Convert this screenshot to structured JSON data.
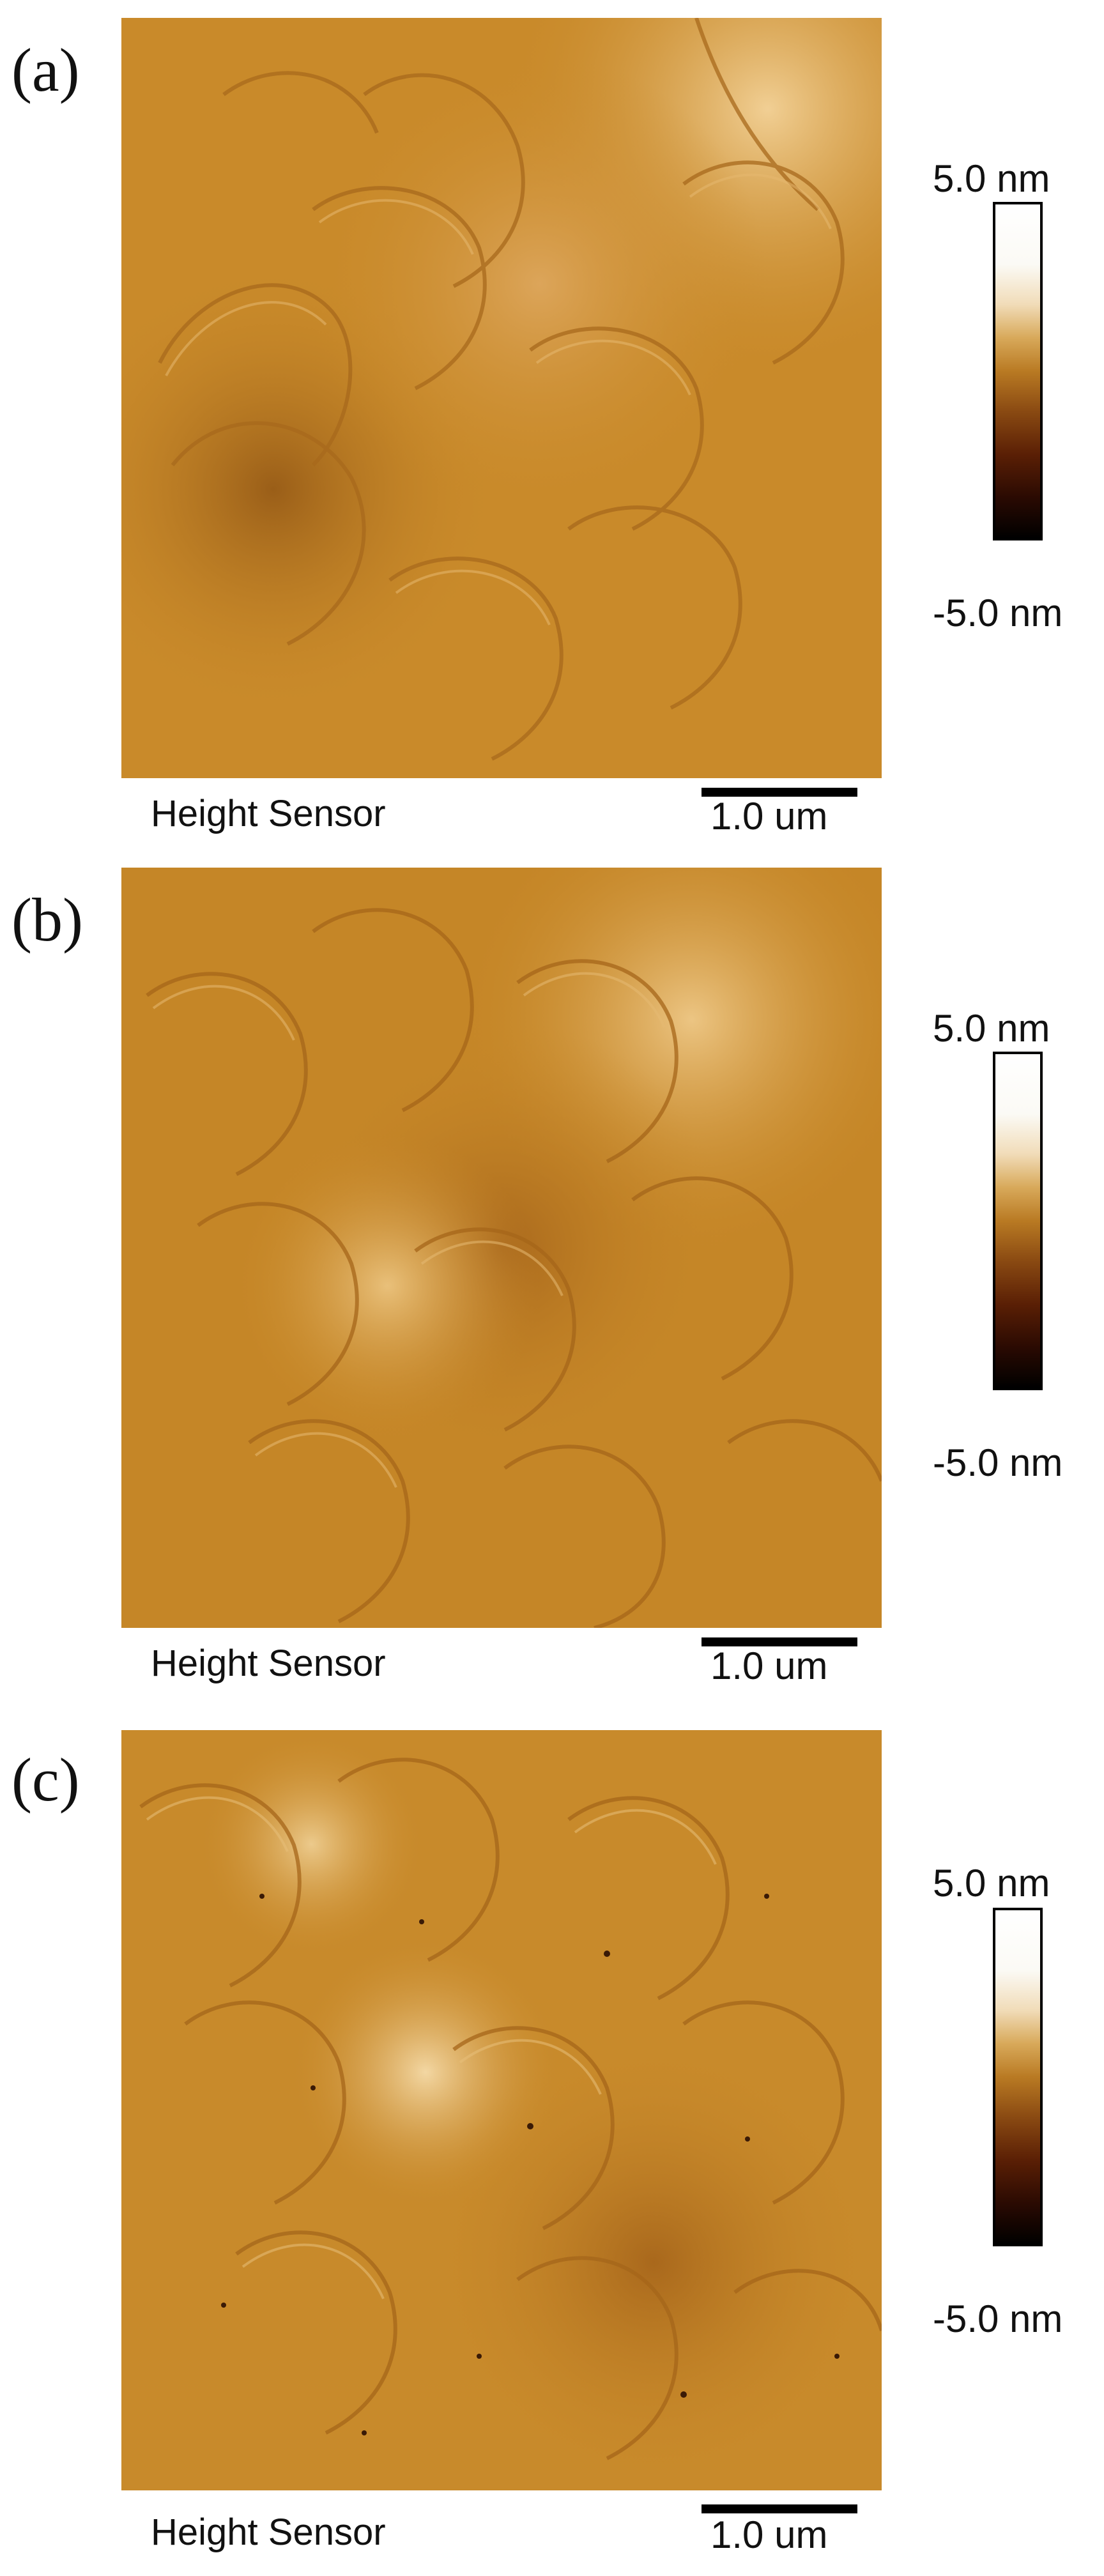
{
  "colors": {
    "afm_base": "#c98a2a",
    "afm_light": "#f2d29a",
    "afm_dark": "#8a5414",
    "colorbar_stops": [
      "#ffffff",
      "#f1dcb8",
      "#b97a23",
      "#5a1f05",
      "#000000"
    ]
  },
  "panels": [
    {
      "label": "(a)",
      "caption": "Height Sensor",
      "scale": "1.0 um",
      "cbar_max": "5.0 nm",
      "cbar_min": "-5.0 nm"
    },
    {
      "label": "(b)",
      "caption": "Height Sensor",
      "scale": "1.0 um",
      "cbar_max": "5.0 nm",
      "cbar_min": "-5.0 nm"
    },
    {
      "label": "(c)",
      "caption": "Height Sensor",
      "scale": "1.0 um",
      "cbar_max": "5.0 nm",
      "cbar_min": "-5.0 nm"
    }
  ]
}
